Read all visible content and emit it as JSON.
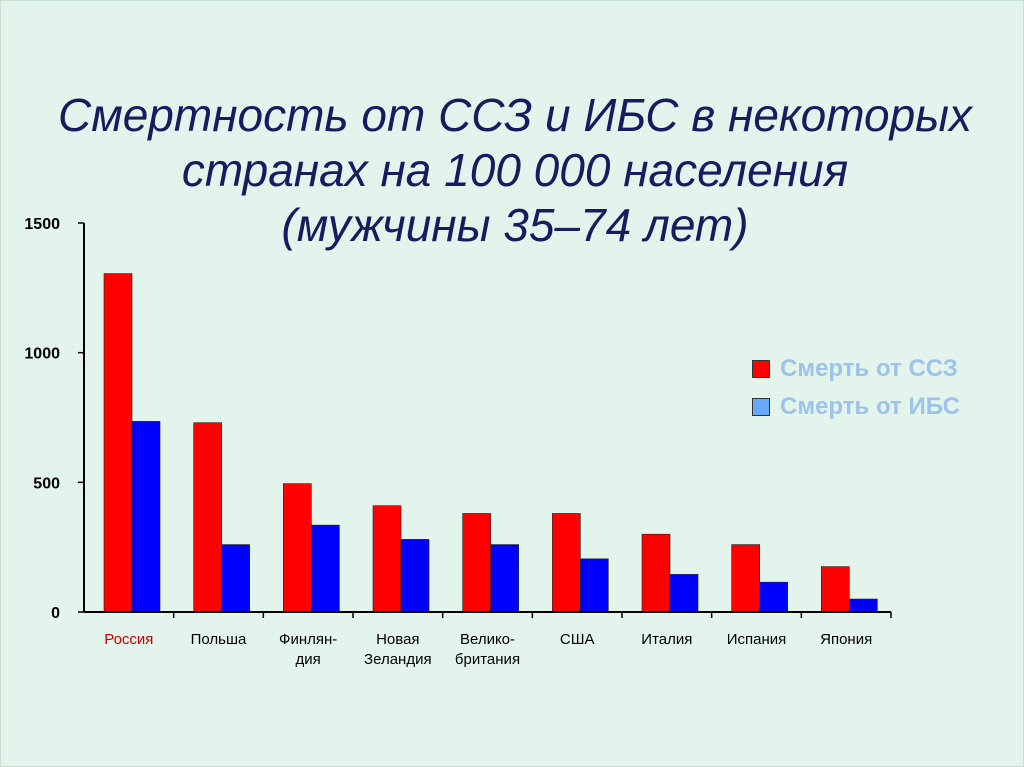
{
  "title": {
    "line1": "Смертность от ССЗ и ИБС в некоторых",
    "line2": "странах на 100 000 населения",
    "line3": "(мужчины 35–74 лет)"
  },
  "colors": {
    "series_css": "#ff0000",
    "series_ibs": "#0000ff",
    "legend_ibs_swatch": "#66aaff",
    "first_category_label": "#cc0000",
    "title": "#1a1a5e",
    "background": "#e2f4ec"
  },
  "chart_data": {
    "type": "bar",
    "categories": [
      "Россия",
      "Польша",
      "Финлян-\nдия",
      "Новая\nЗеландия",
      "Велико-\nбритания",
      "США",
      "Италия",
      "Испания",
      "Япония"
    ],
    "series": [
      {
        "name": "Смерть от ССЗ",
        "values": [
          1305,
          730,
          495,
          410,
          380,
          380,
          300,
          260,
          175
        ]
      },
      {
        "name": "Смерть от ИБС",
        "values": [
          735,
          260,
          335,
          280,
          260,
          205,
          145,
          115,
          50
        ]
      }
    ],
    "ylim": [
      0,
      1500
    ],
    "yticks": [
      0,
      500,
      1000,
      1500
    ],
    "grid": false,
    "legend_position": "right"
  }
}
